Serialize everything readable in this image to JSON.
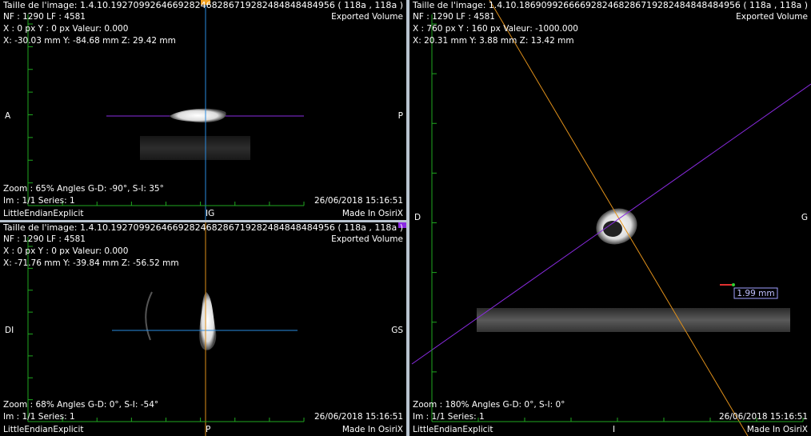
{
  "panels": [
    {
      "header": "Taille de l'image: 1.4.10.1927099264669282468286719282484848484956 ( 118a , 118a )",
      "frame_info": "NF : 1290 LF : 4581",
      "pixel_info": "X : 0 px Y : 0 px Valeur: 0.000",
      "position_info": "X: -30.03 mm Y: -84.68 mm Z: 29.42 mm",
      "volume_label": "Exported Volume",
      "left_orientation": "A",
      "right_orientation": "P",
      "zoom_info": "Zoom : 65% Angles G-D: -90°, S-I: 35°",
      "image_info": "Im : 1/1 Series: 1",
      "date": "26/06/2018 15:16:51",
      "transfer_syntax": "LittleEndianExplicit",
      "bottom_orientation": "IG",
      "footer": "Made In OsiriX"
    },
    {
      "header": "Taille de l'image: 1.4.10.1927099264669282468286719282484848484956 ( 118a , 118a )",
      "frame_info": "NF : 1290 LF : 4581",
      "pixel_info": "X : 0 px Y : 0 px Valeur: 0.000",
      "position_info": "X: -71.76 mm Y: -39.84 mm Z: -56.52 mm",
      "volume_label": "Exported Volume",
      "left_orientation": "DI",
      "right_orientation": "GS",
      "zoom_info": "Zoom : 68% Angles G-D: 0°, S-I: -54°",
      "image_info": "Im : 1/1 Series: 1",
      "date": "26/06/2018 15:16:51",
      "transfer_syntax": "LittleEndianExplicit",
      "bottom_orientation": "P",
      "footer": "Made In OsiriX"
    },
    {
      "header": "Taille de l'image: 1.4.10.1869099266669282468286719282484848484956 ( 118a , 118a )",
      "frame_info": "NF : 1290 LF : 4581",
      "pixel_info": "X : 760 px Y : 160 px Valeur: -1000.000",
      "position_info": "X: 20.31 mm Y: 3.88 mm Z: 13.42 mm",
      "volume_label": "Exported Volume",
      "left_orientation": "D",
      "right_orientation": "G",
      "zoom_info": "Zoom : 180% Angles G-D: 0°, S-I: 0°",
      "image_info": "Im : 1/1 Series: 1",
      "date": "26/06/2018 15:16:51",
      "transfer_syntax": "LittleEndianExplicit",
      "bottom_orientation": "I",
      "footer": "Made In OsiriX"
    }
  ],
  "measurement": "1.99 mm"
}
